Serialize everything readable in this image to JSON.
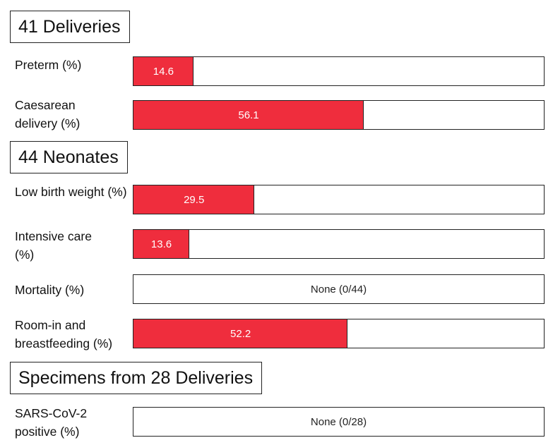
{
  "colors": {
    "bar": "#ef2d3d",
    "border": "#222222"
  },
  "chart_data": {
    "type": "bar",
    "orientation": "horizontal",
    "xlim": [
      0,
      100
    ],
    "sections": [
      {
        "title": "41 Deliveries",
        "rows": [
          {
            "label": "Preterm (%)",
            "value": 14.6,
            "text": "14.6"
          },
          {
            "label": "Caesarean delivery (%)",
            "value": 56.1,
            "text": "56.1"
          }
        ]
      },
      {
        "title": "44 Neonates",
        "rows": [
          {
            "label": "Low birth weight (%)",
            "value": 29.5,
            "text": "29.5"
          },
          {
            "label": "Intensive care (%)",
            "value": 13.6,
            "text": "13.6"
          },
          {
            "label": "Mortality (%)",
            "value": 0,
            "text": "None (0/44)"
          },
          {
            "label": "Room-in and breastfeeding (%)",
            "value": 52.2,
            "text": "52.2"
          }
        ]
      },
      {
        "title": "Specimens from 28 Deliveries",
        "rows": [
          {
            "label": "SARS-CoV-2 positive (%)",
            "value": 0,
            "text": "None (0/28)"
          }
        ]
      }
    ]
  }
}
